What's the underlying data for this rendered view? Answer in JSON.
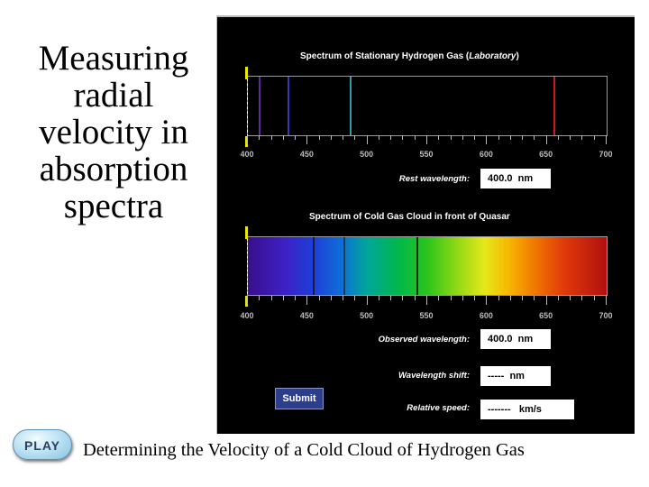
{
  "slide": {
    "title_lines": [
      "Measuring",
      "radial",
      "velocity in",
      "absorption",
      "spectra"
    ],
    "caption": "Determining the Velocity of a Cold Cloud of Hydrogen Gas",
    "play_label": "PLAY"
  },
  "sim": {
    "stationary": {
      "title": "Spectrum of Stationary Hydrogen Gas (",
      "title_italic": "Laboratory",
      "title_end": ")",
      "lines": [
        {
          "wavelength": 410,
          "color": "#5a2d9a"
        },
        {
          "wavelength": 434,
          "color": "#3a36b8"
        },
        {
          "wavelength": 486,
          "color": "#2f9aa8"
        },
        {
          "wavelength": 656,
          "color": "#cc1a1a"
        }
      ]
    },
    "cloud": {
      "title": "Spectrum of Cold Gas Cloud in front of Quasar",
      "lines": [
        {
          "wavelength": 455,
          "color": "#1a1a40"
        },
        {
          "wavelength": 481,
          "color": "#183a44"
        },
        {
          "wavelength": 542,
          "color": "#143010"
        }
      ]
    },
    "axis": {
      "min": 400,
      "max": 700,
      "labels": [
        "400",
        "450",
        "500",
        "550",
        "600",
        "650",
        "700"
      ],
      "label_values": [
        400,
        450,
        500,
        550,
        600,
        650,
        700
      ]
    },
    "rest_wavelength": {
      "label": "Rest wavelength:",
      "value": "400.0",
      "unit": "nm"
    },
    "observed_wavelength": {
      "label": "Observed wavelength:",
      "value": "400.0",
      "unit": "nm"
    },
    "wavelength_shift": {
      "label": "Wavelength shift:",
      "value": "-----",
      "unit": "nm"
    },
    "relative_speed": {
      "label": "Relative speed:",
      "value": "-------",
      "unit": "km/s"
    },
    "submit_label": "Submit",
    "colors": {
      "background": "#000000",
      "marker": "#e8e800",
      "button": "#2d3e8c"
    }
  }
}
